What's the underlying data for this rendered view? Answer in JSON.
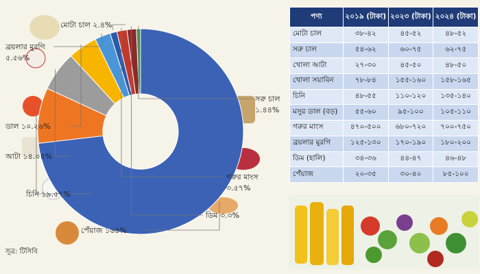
{
  "chart_data": {
    "type": "pie",
    "donut": true,
    "categories": [
      "পেঁয়াজ",
      "চিনি",
      "আটা",
      "ডাল",
      "ব্রয়লার মুরগি",
      "মোটা চাল",
      "গরুর মাংস",
      "ডিম",
      "সরু চাল"
    ],
    "values": [
      164,
      19.57,
      14.04,
      10.26,
      5.56,
      2.4,
      3.57,
      3.3,
      1.44
    ],
    "value_labels": [
      "১৬৪%",
      "১৯.৫৭%",
      "১৪.০৪%",
      "১০.২৬%",
      "৫.৫৬%",
      "২.৪%",
      "৩.৫৭%",
      "৩.৩%",
      "১.৪৪%"
    ],
    "colors": [
      "#3b62b5",
      "#ee7623",
      "#9c9c9c",
      "#f7b500",
      "#4a95d8",
      "#2d5aa8",
      "#c0392b",
      "#8b2a2a",
      "#2e9b48"
    ]
  },
  "table": {
    "header": [
      "পণ্য",
      "২০১৯ (টাকা)",
      "২০২৩ (টাকা)",
      "২০২৪ (টাকা)"
    ],
    "rows": [
      [
        "মোটা চাল",
        "৩৮-৪২",
        "৪৫-৫২",
        "৪৮-৫২"
      ],
      [
        "সরু চাল",
        "৫৪-৬২",
        "৬০-৭৫",
        "৬২-৭৫"
      ],
      [
        "খোলা আটা",
        "২৭-৩০",
        "৪৫-৫০",
        "৪৮-৫০"
      ],
      [
        "খোলা সয়াবিন",
        "৭৮-৮৪",
        "১৫৫-১৬০",
        "১৫৮-১৬৫"
      ],
      [
        "চিনি",
        "৪৮-৫৫",
        "১১০-১২০",
        "১৩৫-১৪০"
      ],
      [
        "মসুর ডাল (বড়)",
        "৫৫-৬০",
        "৯৫-১০০",
        "১০৫-১১০"
      ],
      [
        "গরুর মাংস",
        "৪৭০-৫০০",
        "৬৮০-৭২০",
        "৭০০-৭৫০"
      ],
      [
        "ব্রয়লার মুরগি",
        "১২৫-১৩০",
        "১৭০-১৯০",
        "১৮০-২০০"
      ],
      [
        "ডিম (হালি)",
        "৩৪-৩৬",
        "৪৪-৪৭",
        "৪৬-৪৮"
      ],
      [
        "পেঁয়াজ",
        "২০-৩৫",
        "৩০-৪০",
        "৮৫-১০০"
      ]
    ]
  },
  "source": "সূত্র: টিসিবি"
}
